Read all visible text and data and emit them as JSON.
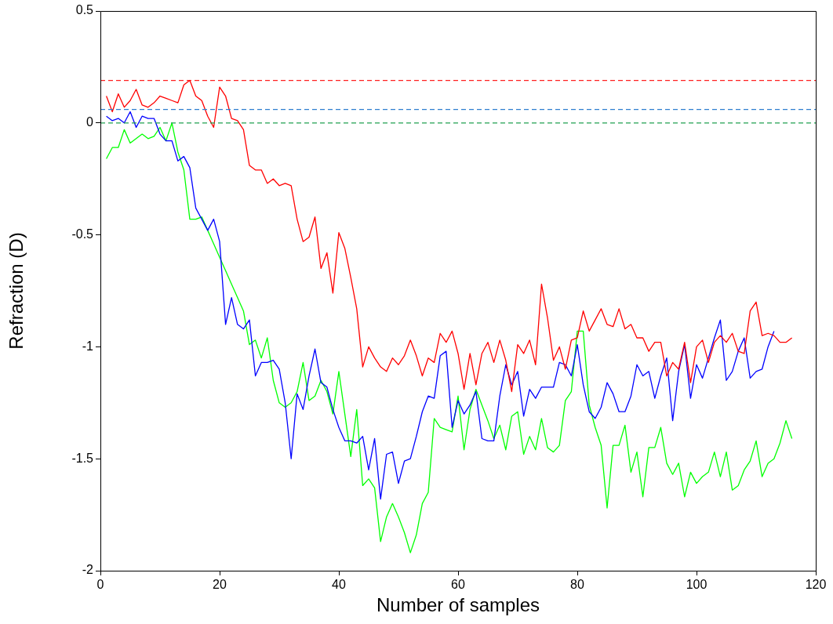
{
  "chart_data": {
    "type": "line",
    "xlabel": "Number of samples",
    "ylabel": "Refraction (D)",
    "x": [
      1,
      2,
      3,
      4,
      5,
      6,
      7,
      8,
      9,
      10,
      11,
      12,
      13,
      14,
      15,
      16,
      17,
      18,
      19,
      20,
      21,
      22,
      23,
      24,
      25,
      26,
      27,
      28,
      29,
      30,
      31,
      32,
      33,
      34,
      35,
      36,
      37,
      38,
      39,
      40,
      41,
      42,
      43,
      44,
      45,
      46,
      47,
      48,
      49,
      50,
      51,
      52,
      53,
      54,
      55,
      56,
      57,
      58,
      59,
      60,
      61,
      62,
      63,
      64,
      65,
      66,
      67,
      68,
      69,
      70,
      71,
      72,
      73,
      74,
      75,
      76,
      77,
      78,
      79,
      80,
      81,
      82,
      83,
      84,
      85,
      86,
      87,
      88,
      89,
      90,
      91,
      92,
      93,
      94,
      95,
      96,
      97,
      98,
      99,
      100,
      101,
      102,
      103,
      104,
      105,
      106,
      107,
      108,
      109,
      110,
      111,
      112,
      113,
      114,
      115,
      116
    ],
    "series": [
      {
        "color": "#ff0000",
        "values": [
          0.12,
          0.05,
          0.13,
          0.07,
          0.1,
          0.15,
          0.08,
          0.07,
          0.09,
          0.12,
          0.11,
          0.1,
          0.09,
          0.17,
          0.19,
          0.12,
          0.1,
          0.03,
          -0.02,
          0.16,
          0.12,
          0.02,
          0.01,
          -0.03,
          -0.19,
          -0.21,
          -0.21,
          -0.27,
          -0.25,
          -0.28,
          -0.27,
          -0.28,
          -0.43,
          -0.53,
          -0.51,
          -0.42,
          -0.65,
          -0.58,
          -0.76,
          -0.49,
          -0.56,
          -0.69,
          -0.83,
          -1.09,
          -1.0,
          -1.05,
          -1.09,
          -1.11,
          -1.05,
          -1.08,
          -1.04,
          -0.97,
          -1.04,
          -1.13,
          -1.05,
          -1.07,
          -0.94,
          -0.98,
          -0.93,
          -1.03,
          -1.19,
          -1.03,
          -1.17,
          -1.03,
          -0.98,
          -1.07,
          -0.97,
          -1.06,
          -1.2,
          -0.99,
          -1.03,
          -0.97,
          -1.08,
          -0.72,
          -0.87,
          -1.06,
          -1.0,
          -1.1,
          -0.97,
          -0.96,
          -0.84,
          -0.93,
          -0.88,
          -0.83,
          -0.9,
          -0.91,
          -0.83,
          -0.92,
          -0.9,
          -0.96,
          -0.96,
          -1.02,
          -0.98,
          -0.98,
          -1.13,
          -1.07,
          -1.1,
          -0.98,
          -1.16,
          -1.0,
          -0.97,
          -1.07,
          -0.98,
          -0.95,
          -0.98,
          -0.94,
          -1.02,
          -1.03,
          -0.84,
          -0.8,
          -0.95,
          -0.94,
          -0.95,
          -0.98,
          -0.98,
          -0.96
        ]
      },
      {
        "color": "#0000ff",
        "values": [
          0.03,
          0.01,
          0.02,
          0.0,
          0.05,
          -0.02,
          0.03,
          0.02,
          0.02,
          -0.05,
          -0.08,
          -0.08,
          -0.17,
          -0.15,
          -0.2,
          -0.38,
          -0.43,
          -0.48,
          -0.43,
          -0.53,
          -0.9,
          -0.78,
          -0.9,
          -0.92,
          -0.88,
          -1.13,
          -1.07,
          -1.07,
          -1.06,
          -1.1,
          -1.25,
          -1.5,
          -1.21,
          -1.28,
          -1.13,
          -1.01,
          -1.16,
          -1.18,
          -1.28,
          -1.36,
          -1.42,
          -1.42,
          -1.43,
          -1.4,
          -1.55,
          -1.41,
          -1.68,
          -1.48,
          -1.47,
          -1.61,
          -1.51,
          -1.5,
          -1.4,
          -1.29,
          -1.22,
          -1.23,
          -1.04,
          -1.02,
          -1.36,
          -1.24,
          -1.3,
          -1.26,
          -1.2,
          -1.41,
          -1.42,
          -1.42,
          -1.22,
          -1.08,
          -1.17,
          -1.11,
          -1.31,
          -1.19,
          -1.23,
          -1.18,
          -1.18,
          -1.18,
          -1.07,
          -1.08,
          -1.13,
          -0.99,
          -1.17,
          -1.29,
          -1.32,
          -1.27,
          -1.16,
          -1.21,
          -1.29,
          -1.29,
          -1.22,
          -1.08,
          -1.13,
          -1.11,
          -1.23,
          -1.13,
          -1.05,
          -1.33,
          -1.11,
          -0.99,
          -1.23,
          -1.08,
          -1.14,
          -1.05,
          -0.96,
          -0.88,
          -1.15,
          -1.11,
          -1.02,
          -0.96,
          -1.14,
          -1.11,
          -1.1,
          -1.0,
          -0.93,
          null,
          null,
          null
        ]
      },
      {
        "color": "#00ff00",
        "values": [
          -0.16,
          -0.11,
          -0.11,
          -0.03,
          -0.09,
          -0.07,
          -0.05,
          -0.07,
          -0.06,
          -0.02,
          -0.08,
          0.0,
          -0.13,
          -0.21,
          -0.43,
          -0.43,
          -0.42,
          -0.48,
          -0.54,
          -0.6,
          -0.66,
          -0.72,
          -0.78,
          -0.84,
          -0.99,
          -0.97,
          -1.05,
          -0.96,
          -1.15,
          -1.25,
          -1.27,
          -1.25,
          -1.2,
          -1.07,
          -1.24,
          -1.22,
          -1.15,
          -1.2,
          -1.3,
          -1.11,
          -1.3,
          -1.49,
          -1.28,
          -1.62,
          -1.59,
          -1.63,
          -1.87,
          -1.76,
          -1.7,
          -1.76,
          -1.83,
          -1.92,
          -1.84,
          -1.7,
          -1.65,
          -1.32,
          -1.36,
          -1.37,
          -1.38,
          -1.22,
          -1.46,
          -1.28,
          -1.19,
          -1.26,
          -1.33,
          -1.41,
          -1.35,
          -1.46,
          -1.31,
          -1.29,
          -1.48,
          -1.4,
          -1.46,
          -1.32,
          -1.45,
          -1.47,
          -1.44,
          -1.24,
          -1.2,
          -0.93,
          -0.93,
          -1.26,
          -1.36,
          -1.44,
          -1.72,
          -1.44,
          -1.44,
          -1.35,
          -1.56,
          -1.47,
          -1.67,
          -1.45,
          -1.45,
          -1.36,
          -1.52,
          -1.57,
          -1.52,
          -1.67,
          -1.56,
          -1.61,
          -1.58,
          -1.56,
          -1.47,
          -1.58,
          -1.47,
          -1.64,
          -1.62,
          -1.55,
          -1.51,
          -1.42,
          -1.58,
          -1.52,
          -1.5,
          -1.43,
          -1.33,
          -1.41
        ]
      }
    ],
    "xlim": [
      0,
      120
    ],
    "ylim": [
      -2,
      0.5
    ],
    "xticks": [
      0,
      20,
      40,
      60,
      80,
      100,
      120
    ],
    "yticks": [
      -2,
      -1.5,
      -1,
      -0.5,
      0,
      0.5
    ],
    "marker": "none",
    "ref_lines": [
      {
        "axis": "y",
        "value": 0.19,
        "color": "#ff2020",
        "line_style": "dashed"
      },
      {
        "axis": "y",
        "value": 0.06,
        "color": "#2f7fd0",
        "line_style": "dashed"
      },
      {
        "axis": "y",
        "value": 0.0,
        "color": "#20a050",
        "line_style": "dashed"
      }
    ]
  }
}
